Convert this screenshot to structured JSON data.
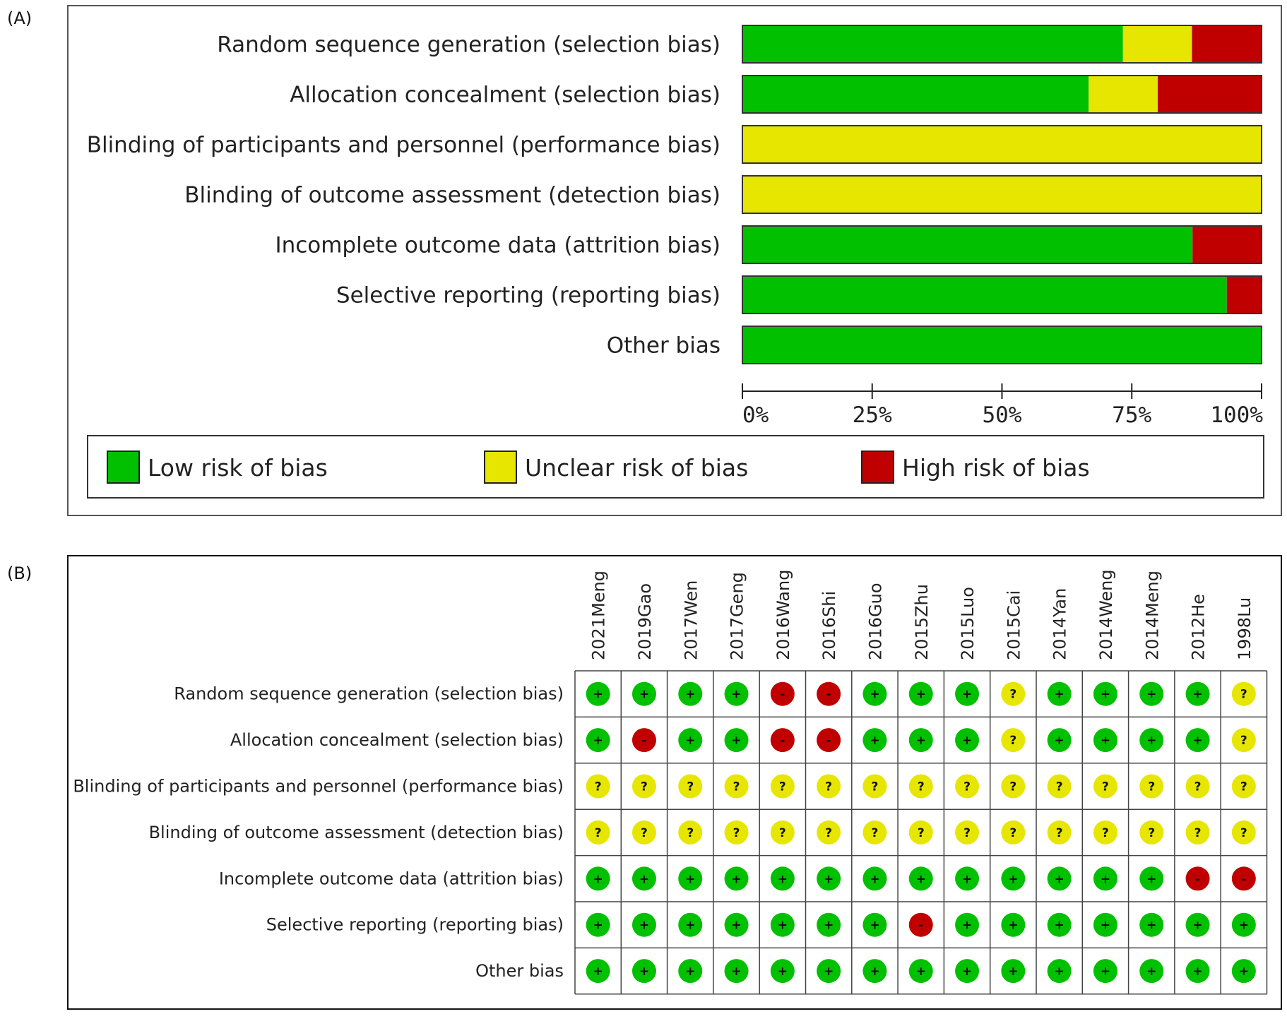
{
  "panels": {
    "a": "(A)",
    "b": "(B)"
  },
  "colors": {
    "low": "#00C000",
    "unclear": "#E6E600",
    "high": "#C00000"
  },
  "chart_data": [
    {
      "type": "bar",
      "orientation": "horizontal",
      "stacked": true,
      "title": "",
      "categories": [
        "Random sequence generation (selection bias)",
        "Allocation concealment (selection bias)",
        "Blinding of participants and personnel (performance bias)",
        "Blinding of outcome assessment (detection bias)",
        "Incomplete outcome data (attrition bias)",
        "Selective reporting (reporting bias)",
        "Other bias"
      ],
      "series": [
        {
          "name": "Low risk of bias",
          "color": "#00C000",
          "values": [
            73.3,
            66.7,
            0,
            0,
            86.7,
            93.3,
            100
          ]
        },
        {
          "name": "Unclear risk of bias",
          "color": "#E6E600",
          "values": [
            13.3,
            13.3,
            100,
            100,
            0,
            0,
            0
          ]
        },
        {
          "name": "High risk of bias",
          "color": "#C00000",
          "values": [
            13.3,
            20.0,
            0,
            0,
            13.3,
            6.7,
            0
          ]
        }
      ],
      "xlim": [
        0,
        100
      ],
      "xticks": [
        "0%",
        "25%",
        "50%",
        "75%",
        "100%"
      ],
      "legend_placement": "bottom"
    },
    {
      "type": "table",
      "title": "",
      "studies": [
        "2021Meng",
        "2019Gao",
        "2017Wen",
        "2017Geng",
        "2016Wang",
        "2016Shi",
        "2016Guo",
        "2015Zhu",
        "2015Luo",
        "2015Cai",
        "2014Yan",
        "2014Weng",
        "2014Meng",
        "2012He",
        "1998Lu"
      ],
      "domains": [
        "Random sequence generation (selection bias)",
        "Allocation concealment (selection bias)",
        "Blinding of participants and personnel (performance bias)",
        "Blinding of outcome assessment (detection bias)",
        "Incomplete outcome data (attrition bias)",
        "Selective reporting (reporting bias)",
        "Other bias"
      ],
      "judgements": [
        [
          "+",
          "+",
          "+",
          "+",
          "-",
          "-",
          "+",
          "+",
          "+",
          "?",
          "+",
          "+",
          "+",
          "+",
          "?"
        ],
        [
          "+",
          "-",
          "+",
          "+",
          "-",
          "-",
          "+",
          "+",
          "+",
          "?",
          "+",
          "+",
          "+",
          "+",
          "?"
        ],
        [
          "?",
          "?",
          "?",
          "?",
          "?",
          "?",
          "?",
          "?",
          "?",
          "?",
          "?",
          "?",
          "?",
          "?",
          "?"
        ],
        [
          "?",
          "?",
          "?",
          "?",
          "?",
          "?",
          "?",
          "?",
          "?",
          "?",
          "?",
          "?",
          "?",
          "?",
          "?"
        ],
        [
          "+",
          "+",
          "+",
          "+",
          "+",
          "+",
          "+",
          "+",
          "+",
          "+",
          "+",
          "+",
          "+",
          "-",
          "-"
        ],
        [
          "+",
          "+",
          "+",
          "+",
          "+",
          "+",
          "+",
          "-",
          "+",
          "+",
          "+",
          "+",
          "+",
          "+",
          "+"
        ],
        [
          "+",
          "+",
          "+",
          "+",
          "+",
          "+",
          "+",
          "+",
          "+",
          "+",
          "+",
          "+",
          "+",
          "+",
          "+"
        ]
      ]
    }
  ]
}
